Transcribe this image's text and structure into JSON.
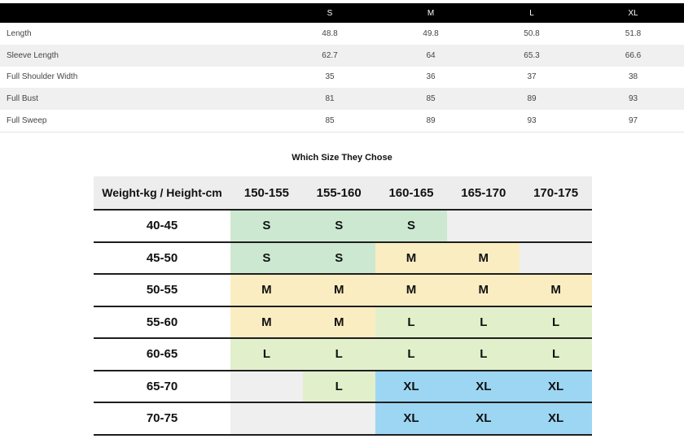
{
  "measurement_table": {
    "sizes": [
      "S",
      "M",
      "L",
      "XL"
    ],
    "rows": [
      {
        "label": "Length",
        "values": [
          "48.8",
          "49.8",
          "50.8",
          "51.8"
        ]
      },
      {
        "label": "Sleeve Length",
        "values": [
          "62.7",
          "64",
          "65.3",
          "66.6"
        ]
      },
      {
        "label": "Full Shoulder Width",
        "values": [
          "35",
          "36",
          "37",
          "38"
        ]
      },
      {
        "label": "Full Bust",
        "values": [
          "81",
          "85",
          "89",
          "93"
        ]
      },
      {
        "label": "Full Sweep",
        "values": [
          "85",
          "89",
          "93",
          "97"
        ]
      }
    ],
    "header_bg": "#000000"
  },
  "size_chart": {
    "title": "Which Size They Chose",
    "header": [
      "Weight-kg / Height-cm",
      "150-155",
      "155-160",
      "160-165",
      "165-170",
      "170-175"
    ],
    "cell_colors": {
      "s": "#cde8d1",
      "m": "#fbedc2",
      "l": "#e2efcb",
      "xl": "#9cd6f2",
      "e": "#efefef"
    },
    "rows": [
      {
        "label": "40-45",
        "cells": [
          {
            "v": "S",
            "c": "s"
          },
          {
            "v": "S",
            "c": "s"
          },
          {
            "v": "S",
            "c": "s"
          },
          {
            "v": "",
            "c": "e"
          },
          {
            "v": "",
            "c": "e"
          }
        ]
      },
      {
        "label": "45-50",
        "cells": [
          {
            "v": "S",
            "c": "s"
          },
          {
            "v": "S",
            "c": "s"
          },
          {
            "v": "M",
            "c": "m"
          },
          {
            "v": "M",
            "c": "m"
          },
          {
            "v": "",
            "c": "e"
          }
        ]
      },
      {
        "label": "50-55",
        "cells": [
          {
            "v": "M",
            "c": "m"
          },
          {
            "v": "M",
            "c": "m"
          },
          {
            "v": "M",
            "c": "m"
          },
          {
            "v": "M",
            "c": "m"
          },
          {
            "v": "M",
            "c": "m"
          }
        ]
      },
      {
        "label": "55-60",
        "cells": [
          {
            "v": "M",
            "c": "m"
          },
          {
            "v": "M",
            "c": "m"
          },
          {
            "v": "L",
            "c": "l"
          },
          {
            "v": "L",
            "c": "l"
          },
          {
            "v": "L",
            "c": "l"
          }
        ]
      },
      {
        "label": "60-65",
        "cells": [
          {
            "v": "L",
            "c": "l"
          },
          {
            "v": "L",
            "c": "l"
          },
          {
            "v": "L",
            "c": "l"
          },
          {
            "v": "L",
            "c": "l"
          },
          {
            "v": "L",
            "c": "l"
          }
        ]
      },
      {
        "label": "65-70",
        "cells": [
          {
            "v": "",
            "c": "e"
          },
          {
            "v": "L",
            "c": "l"
          },
          {
            "v": "XL",
            "c": "xl"
          },
          {
            "v": "XL",
            "c": "xl"
          },
          {
            "v": "XL",
            "c": "xl"
          }
        ]
      },
      {
        "label": "70-75",
        "cells": [
          {
            "v": "",
            "c": "e"
          },
          {
            "v": "",
            "c": "e"
          },
          {
            "v": "XL",
            "c": "xl"
          },
          {
            "v": "XL",
            "c": "xl"
          },
          {
            "v": "XL",
            "c": "xl"
          }
        ]
      }
    ]
  }
}
